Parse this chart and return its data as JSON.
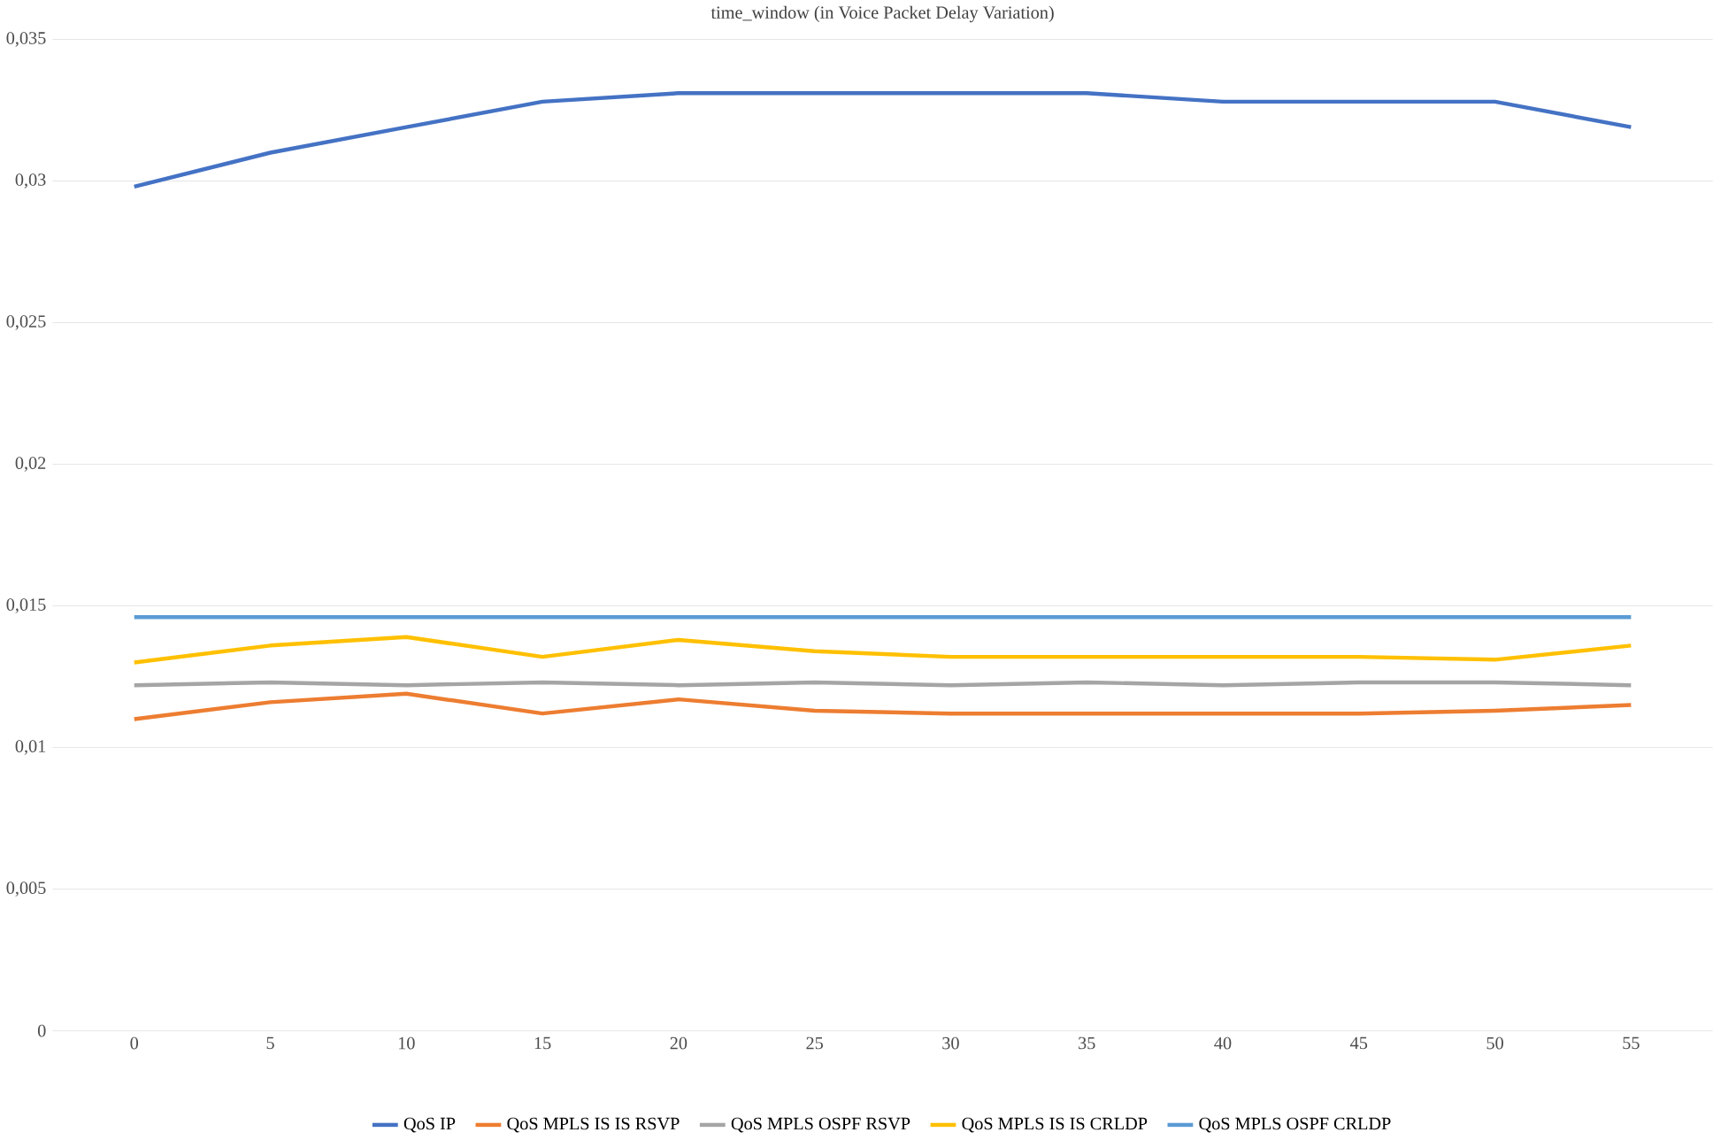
{
  "chart_data": {
    "type": "line",
    "title": "time_window (in Voice  Packet Delay Variation)",
    "categories": [
      "0",
      "5",
      "10",
      "15",
      "20",
      "25",
      "30",
      "35",
      "40",
      "45",
      "50",
      "55"
    ],
    "series": [
      {
        "name": "QoS IP",
        "color": "#4472c4",
        "values": [
          0.0298,
          0.031,
          0.0319,
          0.0328,
          0.0331,
          0.0331,
          0.0331,
          0.0331,
          0.0328,
          0.0328,
          0.0328,
          0.0319
        ]
      },
      {
        "name": "QoS MPLS IS IS RSVP",
        "color": "#ed7d31",
        "values": [
          0.011,
          0.0116,
          0.0119,
          0.0112,
          0.0117,
          0.0113,
          0.0112,
          0.0112,
          0.0112,
          0.0112,
          0.0113,
          0.0115
        ]
      },
      {
        "name": "QoS MPLS OSPF RSVP",
        "color": "#a5a5a5",
        "values": [
          0.0122,
          0.0123,
          0.0122,
          0.0123,
          0.0122,
          0.0123,
          0.0122,
          0.0123,
          0.0122,
          0.0123,
          0.0123,
          0.0122
        ]
      },
      {
        "name": "QoS MPLS IS IS CRLDP",
        "color": "#ffc000",
        "values": [
          0.013,
          0.0136,
          0.0139,
          0.0132,
          0.0138,
          0.0134,
          0.0132,
          0.0132,
          0.0132,
          0.0132,
          0.0131,
          0.0136
        ]
      },
      {
        "name": "QoS MPLS OSPF CRLDP",
        "color": "#5b9bd5",
        "values": [
          0.0146,
          0.0146,
          0.0146,
          0.0146,
          0.0146,
          0.0146,
          0.0146,
          0.0146,
          0.0146,
          0.0146,
          0.0146,
          0.0146
        ]
      }
    ],
    "ylim": [
      0,
      0.035
    ],
    "yticks": [
      {
        "value": 0,
        "label": "0"
      },
      {
        "value": 0.005,
        "label": "0,005"
      },
      {
        "value": 0.01,
        "label": "0,01"
      },
      {
        "value": 0.015,
        "label": "0,015"
      },
      {
        "value": 0.02,
        "label": "0,02"
      },
      {
        "value": 0.025,
        "label": "0,025"
      },
      {
        "value": 0.03,
        "label": "0,03"
      },
      {
        "value": 0.035,
        "label": "0,035"
      }
    ],
    "grid": "y",
    "legend": "bottom",
    "marker": "none",
    "line_style": "solid"
  }
}
